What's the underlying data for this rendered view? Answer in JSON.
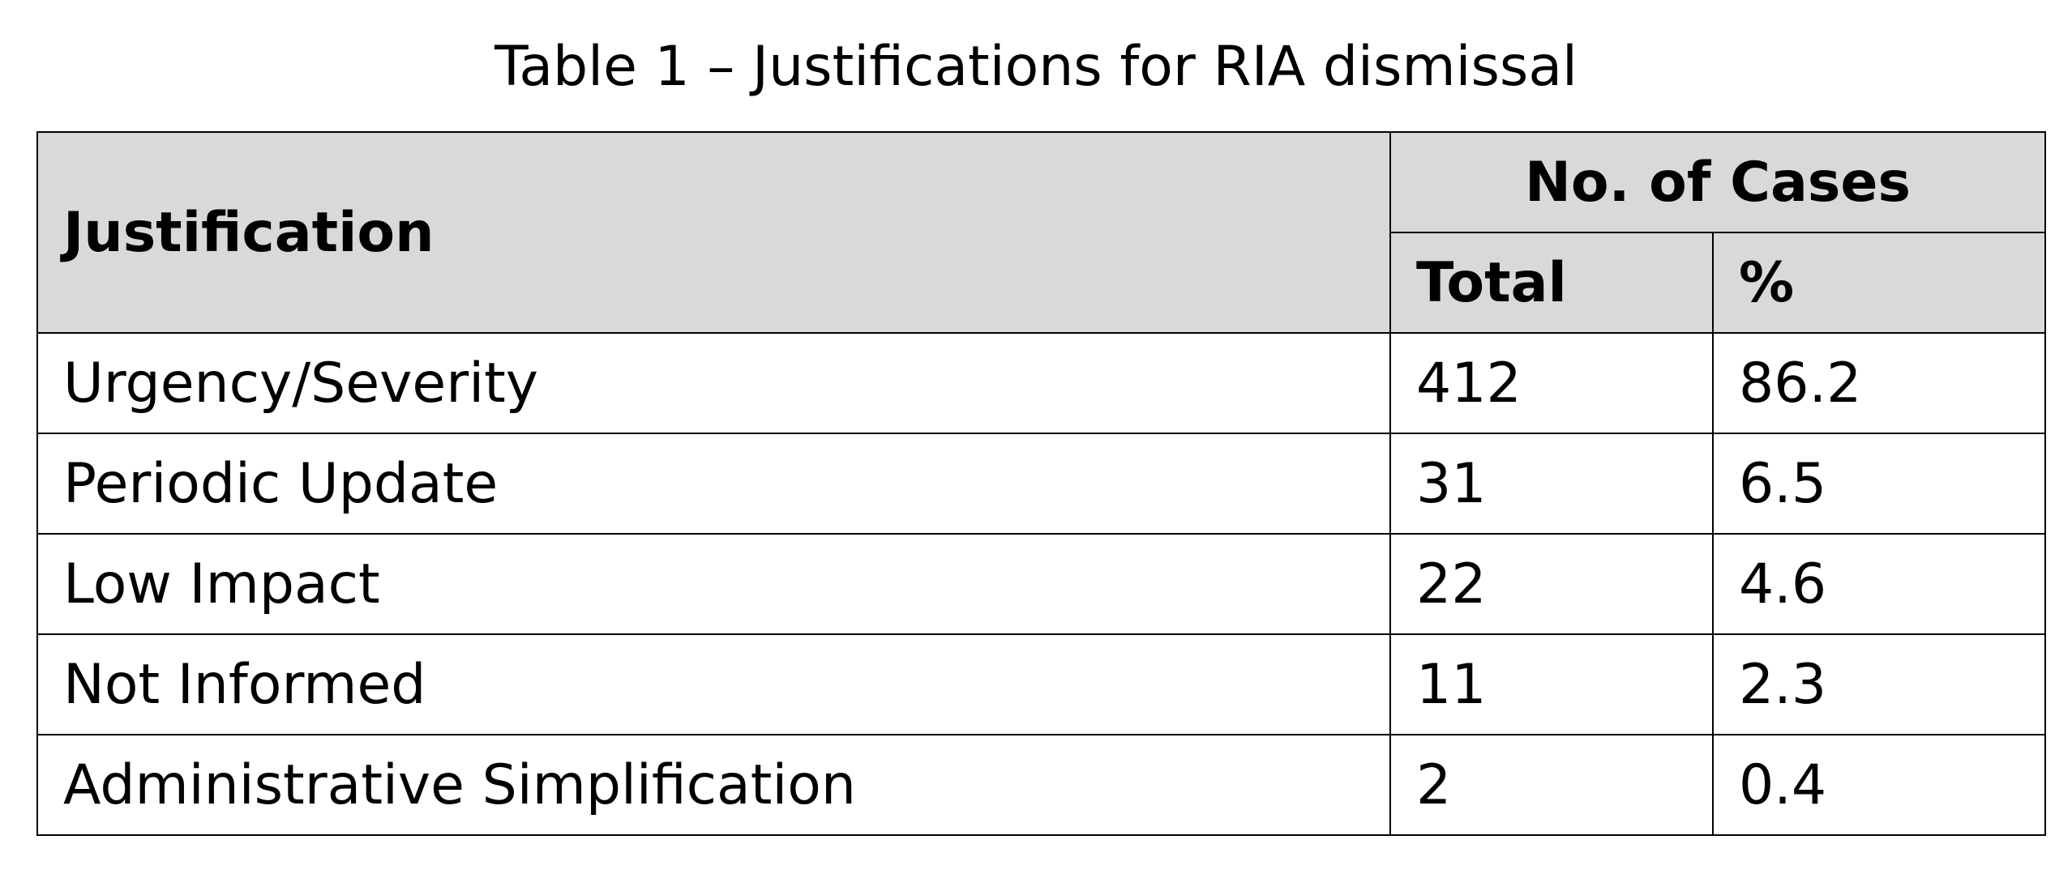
{
  "caption": "Table 1 – Justifications for RIA dismissal",
  "table": {
    "headers": {
      "justification": "Justification",
      "group": "No. of Cases",
      "total": "Total",
      "percent": "%"
    },
    "rows": [
      {
        "justification": "Urgency/Severity",
        "total": "412",
        "percent": "86.2"
      },
      {
        "justification": "Periodic Update",
        "total": "31",
        "percent": "6.5"
      },
      {
        "justification": "Low Impact",
        "total": "22",
        "percent": "4.6"
      },
      {
        "justification": "Not Informed",
        "total": "11",
        "percent": "2.3"
      },
      {
        "justification": "Administrative Simplification",
        "total": "2",
        "percent": "0.4"
      }
    ],
    "header_fill": "#d9d9d9",
    "border_color": "#000000"
  }
}
